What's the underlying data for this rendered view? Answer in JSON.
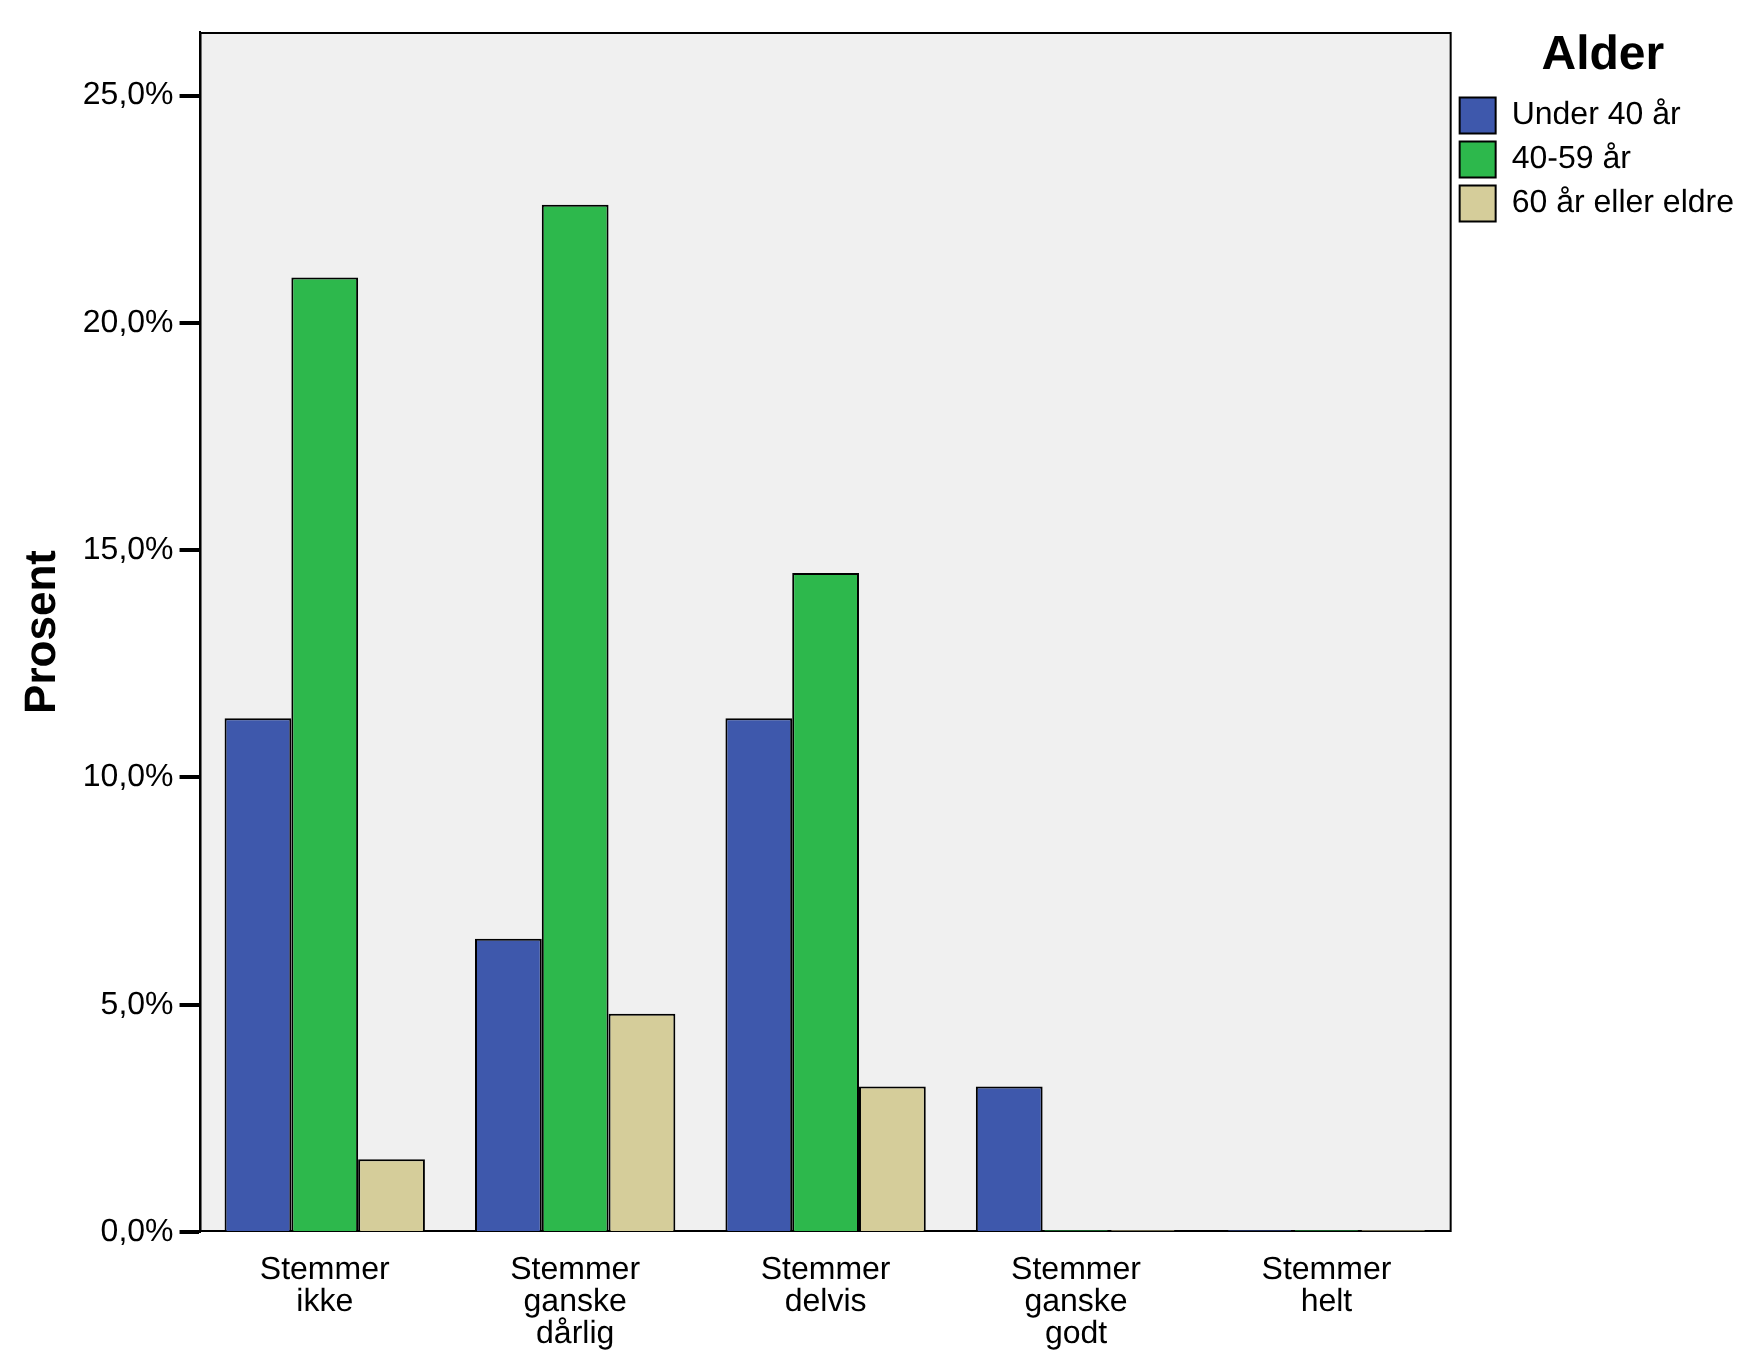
{
  "chart_data": {
    "type": "bar",
    "ylabel": "Prosent",
    "legend_title": "Alder",
    "legend": "top right",
    "grid": false,
    "categories": [
      "Stemmer ikke",
      "Stemmer ganske dårlig",
      "Stemmer delvis",
      "Stemmer ganske godt",
      "Stemmer helt"
    ],
    "series": [
      {
        "name": "Under 40 år",
        "color": "#3e58ac",
        "values": [
          11.3,
          6.45,
          11.3,
          3.2,
          0
        ]
      },
      {
        "name": "40-59 år",
        "color": "#2db84c",
        "values": [
          21.0,
          22.6,
          14.5,
          0,
          0
        ]
      },
      {
        "name": "60 år eller eldre",
        "color": "#d5cd9a",
        "values": [
          1.6,
          4.8,
          3.2,
          0,
          0
        ]
      }
    ],
    "ylim": [
      0,
      26.4
    ],
    "yticks": [
      {
        "value": 0,
        "label": "0,0%"
      },
      {
        "value": 5,
        "label": "5,0%"
      },
      {
        "value": 10,
        "label": "10,0%"
      },
      {
        "value": 15,
        "label": "15,0%"
      },
      {
        "value": 20,
        "label": "20,0%"
      },
      {
        "value": 25,
        "label": "25,0%"
      }
    ]
  }
}
